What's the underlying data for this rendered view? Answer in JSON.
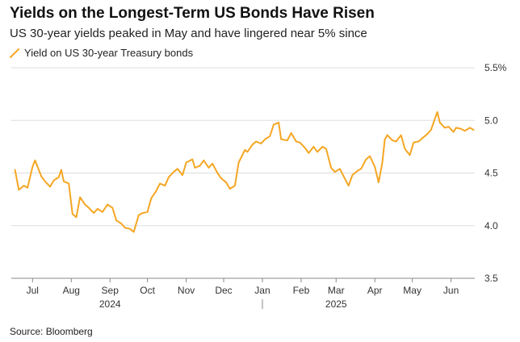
{
  "title": "Yields on the Longest-Term US Bonds Have Risen",
  "subtitle": "US 30-year yields peaked in May and have lingered near 5% since",
  "source": "Source: Bloomberg",
  "colors": {
    "line": "#f5a623",
    "grid": "#dddddd",
    "axis": "#888888"
  },
  "chart_data": {
    "type": "line",
    "title": "Yields on the Longest-Term US Bonds Have Risen",
    "subtitle": "US 30-year yields peaked in May and have lingered near 5% since",
    "xlabel": "",
    "ylabel": "",
    "ylim": [
      3.5,
      5.5
    ],
    "yticks": [
      {
        "value": 3.5,
        "label": "3.5"
      },
      {
        "value": 4.0,
        "label": "4.0"
      },
      {
        "value": 4.5,
        "label": "4.5"
      },
      {
        "value": 5.0,
        "label": "5.0"
      },
      {
        "value": 5.5,
        "label": "5.5%"
      }
    ],
    "xlim": [
      "2024-06-14",
      "2025-06-20"
    ],
    "xticks": [
      {
        "date": "2024-07-01",
        "label": "Jul"
      },
      {
        "date": "2024-08-01",
        "label": "Aug"
      },
      {
        "date": "2024-09-01",
        "label": "Sep"
      },
      {
        "date": "2024-10-01",
        "label": "Oct"
      },
      {
        "date": "2024-11-01",
        "label": "Nov"
      },
      {
        "date": "2024-12-01",
        "label": "Dec"
      },
      {
        "date": "2025-01-01",
        "label": "Jan"
      },
      {
        "date": "2025-02-01",
        "label": "Feb"
      },
      {
        "date": "2025-03-01",
        "label": "Mar"
      },
      {
        "date": "2025-04-01",
        "label": "Apr"
      },
      {
        "date": "2025-05-01",
        "label": "May"
      },
      {
        "date": "2025-06-01",
        "label": "Jun"
      }
    ],
    "year_labels": [
      {
        "date": "2024-09-01",
        "label": "2024"
      },
      {
        "date": "2025-03-01",
        "label": "2025"
      }
    ],
    "grid": true,
    "legend_position": "top-left",
    "series": [
      {
        "name": "Yield on US 30-year Treasury bonds",
        "color": "#f5a623",
        "points": [
          [
            "2024-06-17",
            4.53
          ],
          [
            "2024-06-20",
            4.34
          ],
          [
            "2024-06-24",
            4.38
          ],
          [
            "2024-06-27",
            4.36
          ],
          [
            "2024-07-01",
            4.56
          ],
          [
            "2024-07-03",
            4.62
          ],
          [
            "2024-07-08",
            4.47
          ],
          [
            "2024-07-11",
            4.42
          ],
          [
            "2024-07-15",
            4.37
          ],
          [
            "2024-07-18",
            4.43
          ],
          [
            "2024-07-22",
            4.46
          ],
          [
            "2024-07-24",
            4.53
          ],
          [
            "2024-07-26",
            4.42
          ],
          [
            "2024-07-30",
            4.4
          ],
          [
            "2024-08-02",
            4.11
          ],
          [
            "2024-08-05",
            4.08
          ],
          [
            "2024-08-08",
            4.27
          ],
          [
            "2024-08-12",
            4.2
          ],
          [
            "2024-08-15",
            4.17
          ],
          [
            "2024-08-19",
            4.12
          ],
          [
            "2024-08-22",
            4.16
          ],
          [
            "2024-08-26",
            4.13
          ],
          [
            "2024-08-30",
            4.2
          ],
          [
            "2024-09-03",
            4.17
          ],
          [
            "2024-09-06",
            4.05
          ],
          [
            "2024-09-10",
            4.02
          ],
          [
            "2024-09-13",
            3.98
          ],
          [
            "2024-09-17",
            3.97
          ],
          [
            "2024-09-20",
            3.94
          ],
          [
            "2024-09-24",
            4.1
          ],
          [
            "2024-09-27",
            4.12
          ],
          [
            "2024-10-01",
            4.13
          ],
          [
            "2024-10-04",
            4.26
          ],
          [
            "2024-10-08",
            4.33
          ],
          [
            "2024-10-11",
            4.4
          ],
          [
            "2024-10-15",
            4.38
          ],
          [
            "2024-10-18",
            4.46
          ],
          [
            "2024-10-22",
            4.51
          ],
          [
            "2024-10-25",
            4.54
          ],
          [
            "2024-10-29",
            4.48
          ],
          [
            "2024-11-01",
            4.6
          ],
          [
            "2024-11-06",
            4.63
          ],
          [
            "2024-11-08",
            4.55
          ],
          [
            "2024-11-12",
            4.57
          ],
          [
            "2024-11-15",
            4.62
          ],
          [
            "2024-11-19",
            4.55
          ],
          [
            "2024-11-22",
            4.59
          ],
          [
            "2024-11-26",
            4.5
          ],
          [
            "2024-11-29",
            4.45
          ],
          [
            "2024-12-03",
            4.41
          ],
          [
            "2024-12-06",
            4.35
          ],
          [
            "2024-12-10",
            4.38
          ],
          [
            "2024-12-13",
            4.6
          ],
          [
            "2024-12-18",
            4.72
          ],
          [
            "2024-12-20",
            4.7
          ],
          [
            "2024-12-24",
            4.77
          ],
          [
            "2024-12-27",
            4.8
          ],
          [
            "2024-12-31",
            4.78
          ],
          [
            "2025-01-03",
            4.82
          ],
          [
            "2025-01-07",
            4.85
          ],
          [
            "2025-01-10",
            4.96
          ],
          [
            "2025-01-14",
            4.98
          ],
          [
            "2025-01-16",
            4.82
          ],
          [
            "2025-01-21",
            4.81
          ],
          [
            "2025-01-24",
            4.88
          ],
          [
            "2025-01-28",
            4.8
          ],
          [
            "2025-01-31",
            4.79
          ],
          [
            "2025-02-04",
            4.74
          ],
          [
            "2025-02-07",
            4.69
          ],
          [
            "2025-02-11",
            4.75
          ],
          [
            "2025-02-14",
            4.7
          ],
          [
            "2025-02-18",
            4.75
          ],
          [
            "2025-02-21",
            4.73
          ],
          [
            "2025-02-25",
            4.55
          ],
          [
            "2025-02-28",
            4.51
          ],
          [
            "2025-03-04",
            4.54
          ],
          [
            "2025-03-07",
            4.47
          ],
          [
            "2025-03-11",
            4.38
          ],
          [
            "2025-03-14",
            4.48
          ],
          [
            "2025-03-18",
            4.52
          ],
          [
            "2025-03-21",
            4.54
          ],
          [
            "2025-03-25",
            4.63
          ],
          [
            "2025-03-28",
            4.66
          ],
          [
            "2025-04-01",
            4.56
          ],
          [
            "2025-04-04",
            4.41
          ],
          [
            "2025-04-07",
            4.6
          ],
          [
            "2025-04-09",
            4.82
          ],
          [
            "2025-04-11",
            4.86
          ],
          [
            "2025-04-15",
            4.81
          ],
          [
            "2025-04-18",
            4.8
          ],
          [
            "2025-04-22",
            4.86
          ],
          [
            "2025-04-25",
            4.73
          ],
          [
            "2025-04-29",
            4.67
          ],
          [
            "2025-05-02",
            4.79
          ],
          [
            "2025-05-06",
            4.8
          ],
          [
            "2025-05-09",
            4.83
          ],
          [
            "2025-05-13",
            4.87
          ],
          [
            "2025-05-16",
            4.91
          ],
          [
            "2025-05-21",
            5.08
          ],
          [
            "2025-05-23",
            4.98
          ],
          [
            "2025-05-27",
            4.93
          ],
          [
            "2025-05-30",
            4.94
          ],
          [
            "2025-06-03",
            4.89
          ],
          [
            "2025-06-05",
            4.93
          ],
          [
            "2025-06-09",
            4.92
          ],
          [
            "2025-06-12",
            4.9
          ],
          [
            "2025-06-16",
            4.93
          ],
          [
            "2025-06-19",
            4.91
          ]
        ]
      }
    ]
  }
}
